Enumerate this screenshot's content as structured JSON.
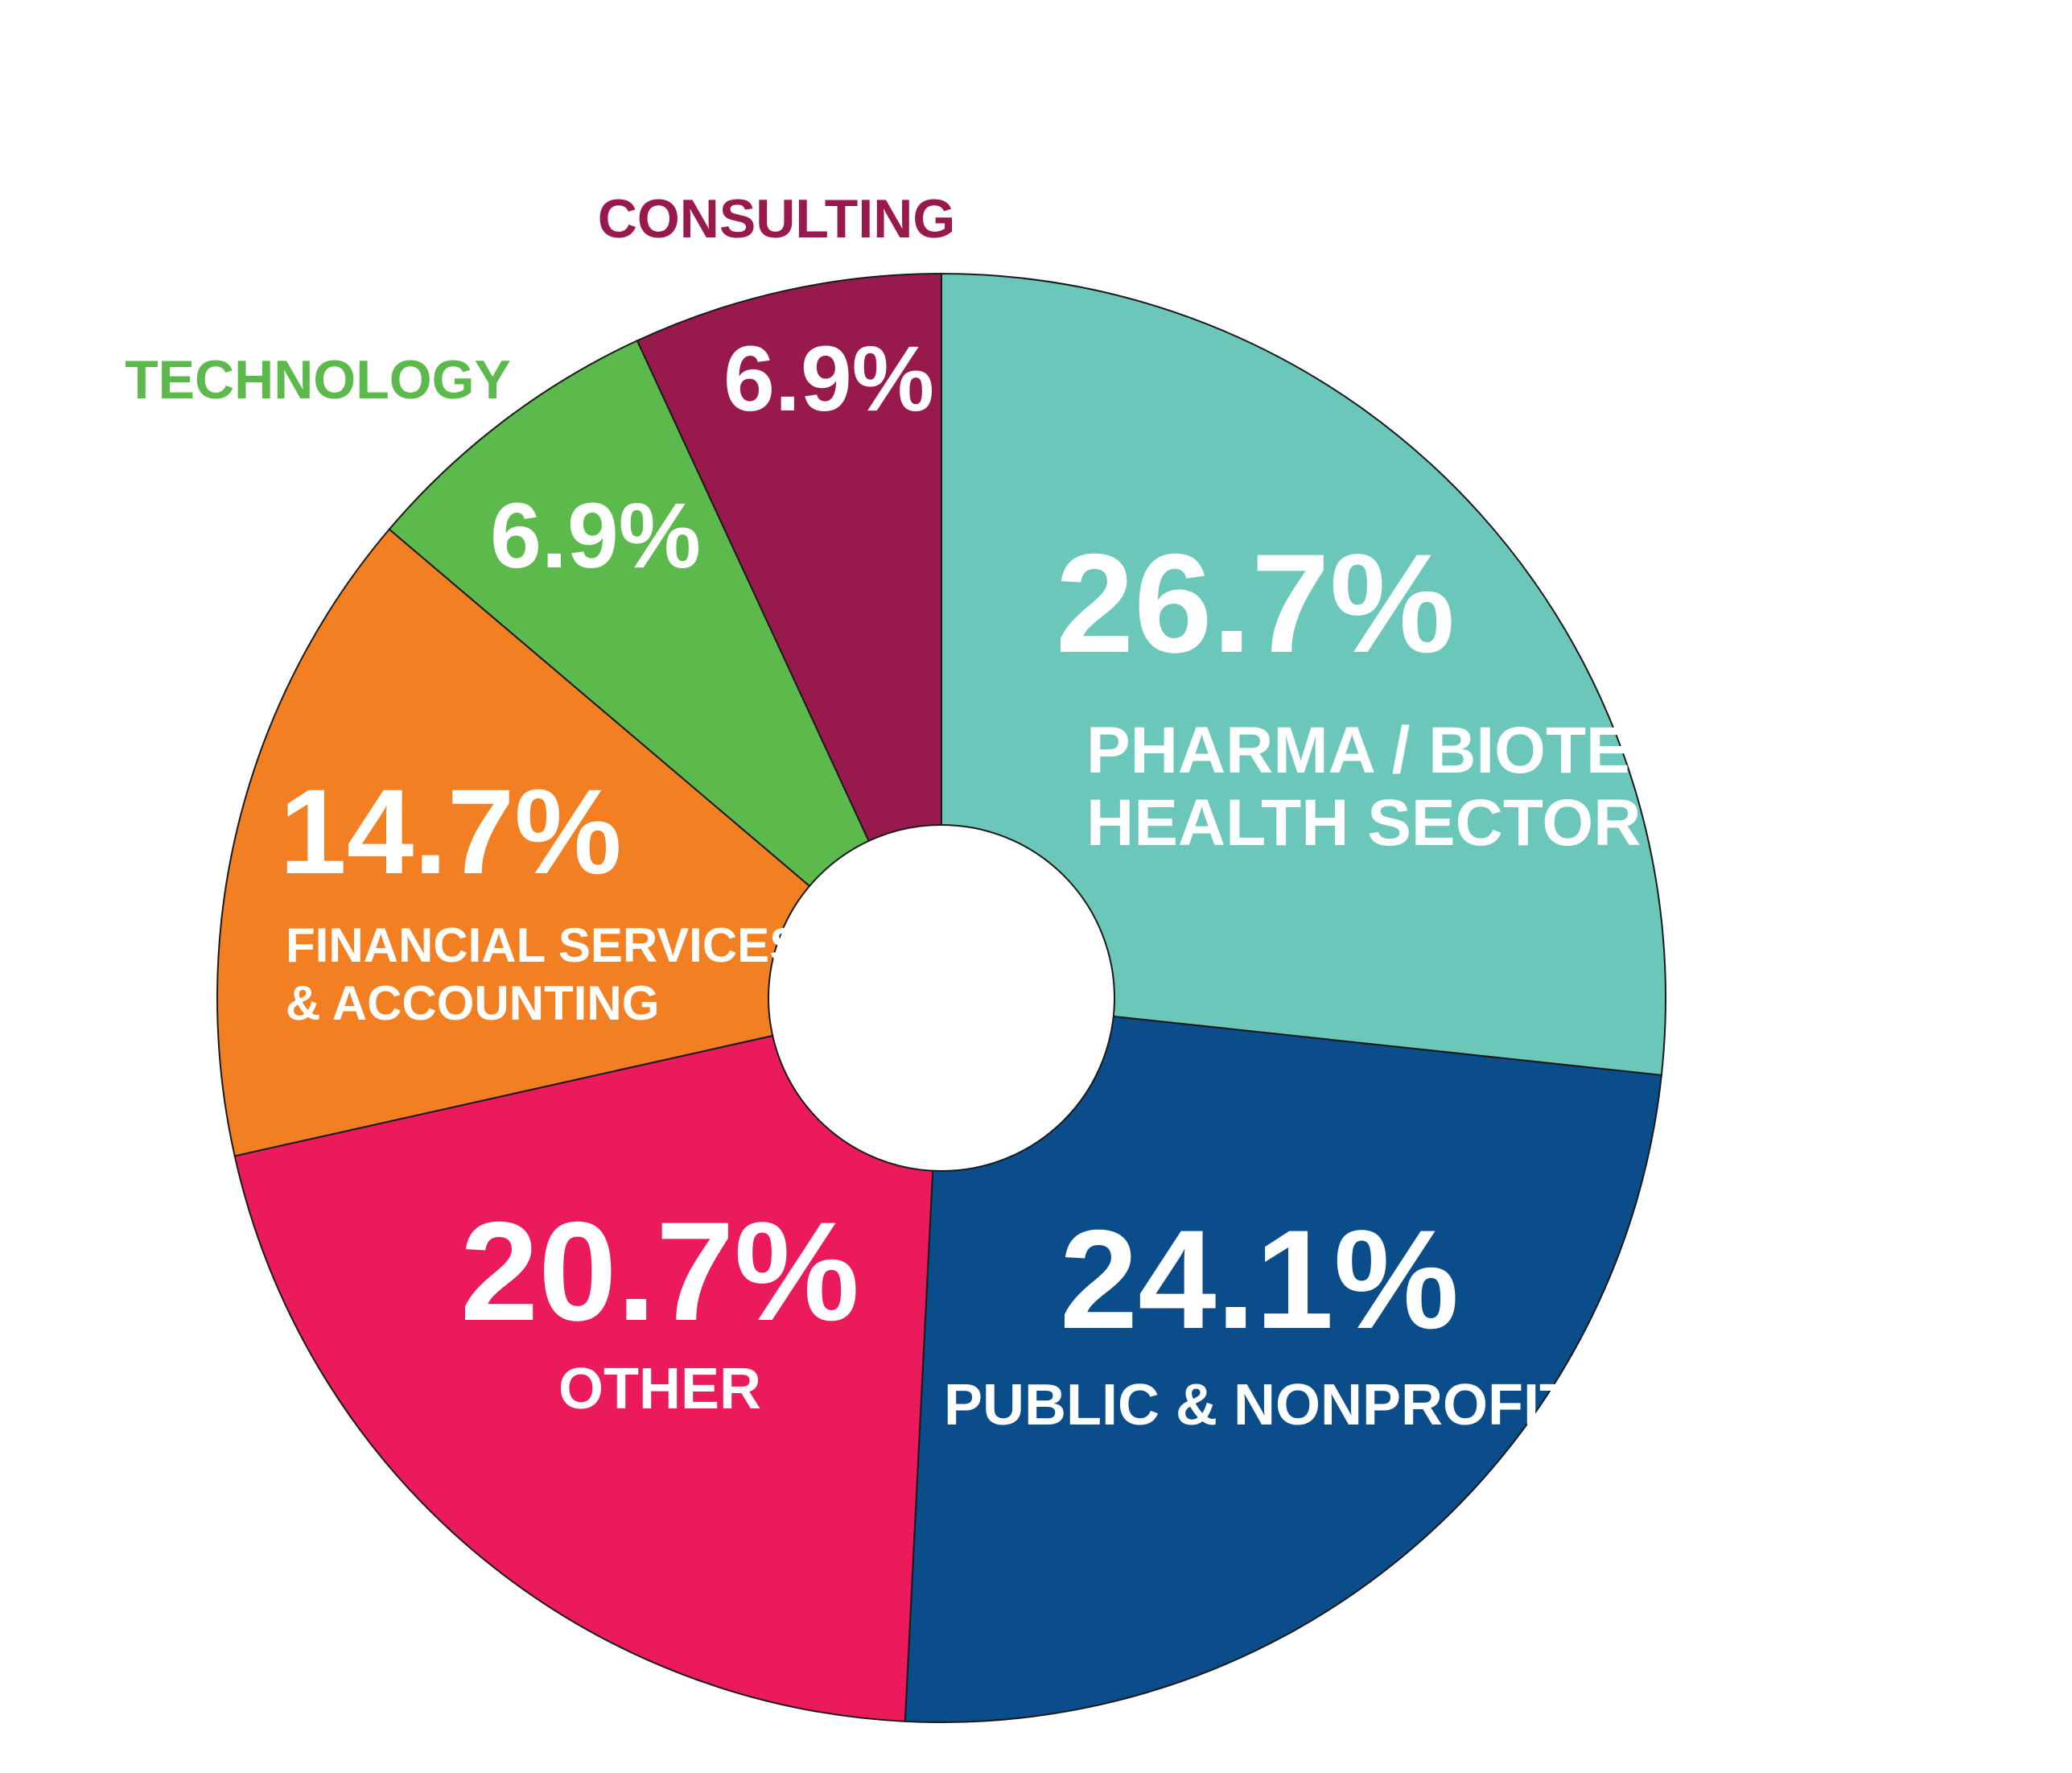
{
  "chart_data": {
    "type": "pie",
    "variant": "donut",
    "title": "",
    "slices": [
      {
        "label_lines": [
          "PHARMA / BIOTECH /",
          "HEALTH SECTOR"
        ],
        "value": 26.7,
        "display": "26.7%",
        "color": "#6AC7B9"
      },
      {
        "label_lines": [
          "PUBLIC & NONPROFIT"
        ],
        "value": 24.1,
        "display": "24.1%",
        "color": "#0B4C8A"
      },
      {
        "label_lines": [
          "OTHER"
        ],
        "value": 20.7,
        "display": "20.7%",
        "color": "#EA1A5B"
      },
      {
        "label_lines": [
          "FINANCIAL SERVICES",
          "& ACCOUNTING"
        ],
        "value": 14.7,
        "display": "14.7%",
        "color": "#F28023"
      },
      {
        "label_lines": [
          "TECHNOLOGY"
        ],
        "value": 6.9,
        "display": "6.9%",
        "color": "#5CB94B"
      },
      {
        "label_lines": [
          "CONSULTING"
        ],
        "value": 6.9,
        "display": "6.9%",
        "color": "#981A4C"
      }
    ],
    "legend": "labels placed on or beside each slice",
    "start": "top, clockwise"
  }
}
